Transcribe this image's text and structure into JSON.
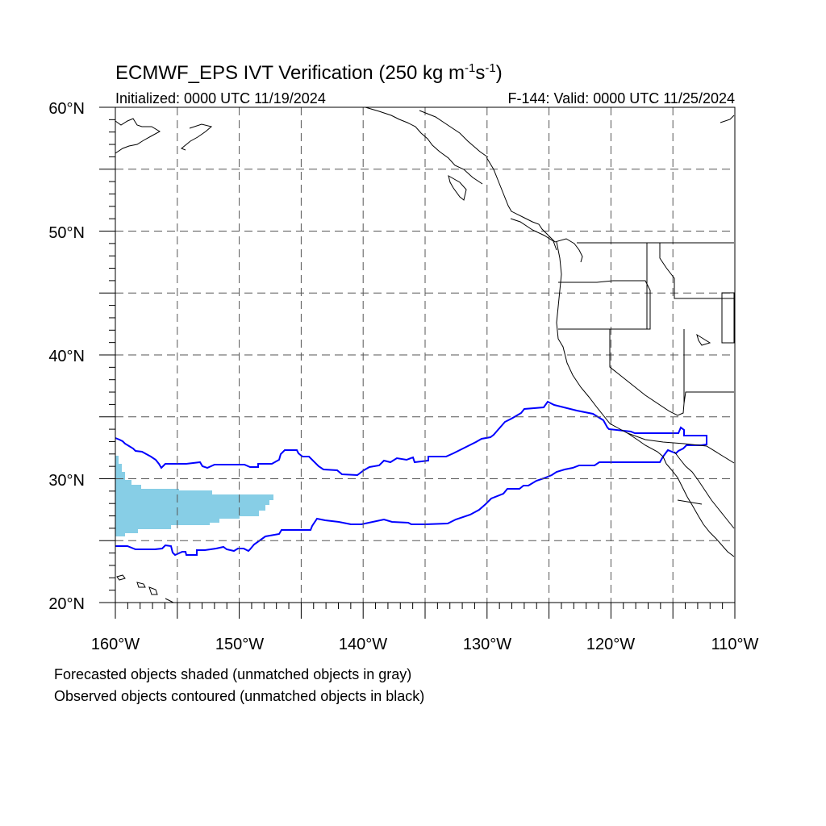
{
  "title": {
    "main": "ECMWF_EPS IVT Verification (250 kg m",
    "sup1": "-1",
    "mid": "s",
    "sup2": "-1",
    "end": ")"
  },
  "subtitle_left": "Initialized: 0000 UTC 11/19/2024",
  "subtitle_right": "F-144: Valid: 0000 UTC 11/25/2024",
  "lat_labels": [
    "20°N",
    "30°N",
    "40°N",
    "50°N",
    "60°N"
  ],
  "lon_labels": [
    "160°W",
    "150°W",
    "140°W",
    "130°W",
    "120°W",
    "110°W"
  ],
  "footnote_1": "Forecasted objects shaded (unmatched objects in gray)",
  "footnote_2": "Observed objects contoured (unmatched objects in black)",
  "colors": {
    "forecast_fill": "#87CEE6",
    "observed_contour": "#0000FF",
    "gridline": "#555555",
    "coastline": "#000000"
  },
  "map_extent": {
    "lon_min": -160,
    "lon_max": -110,
    "lat_min": 20,
    "lat_max": 60
  },
  "forecast_object": {
    "lon_range": [
      -160,
      -147.5
    ],
    "lat_range": [
      25.4,
      31.8
    ]
  },
  "observed_object": {
    "lon_range": [
      -160,
      -112.2
    ],
    "lat_range": [
      23.8,
      36.2
    ]
  }
}
